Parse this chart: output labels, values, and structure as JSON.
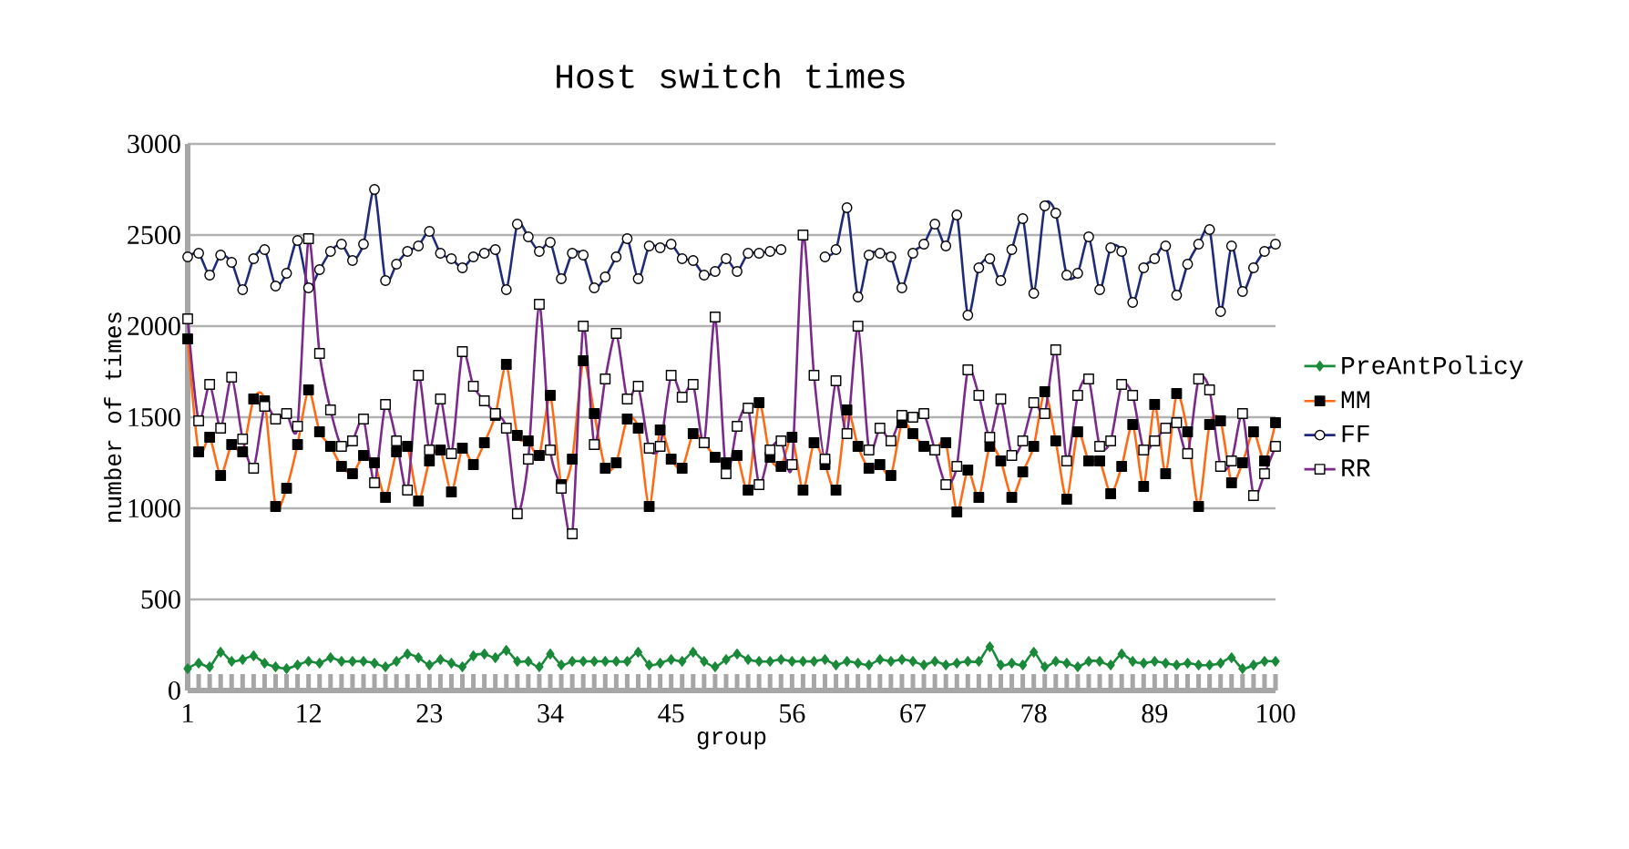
{
  "chart_data": {
    "type": "line",
    "title": "Host switch times",
    "xlabel": "group",
    "ylabel": "number of times",
    "x": [
      1,
      2,
      3,
      4,
      5,
      6,
      7,
      8,
      9,
      10,
      11,
      12,
      13,
      14,
      15,
      16,
      17,
      18,
      19,
      20,
      21,
      22,
      23,
      24,
      25,
      26,
      27,
      28,
      29,
      30,
      31,
      32,
      33,
      34,
      35,
      36,
      37,
      38,
      39,
      40,
      41,
      42,
      43,
      44,
      45,
      46,
      47,
      48,
      49,
      50,
      51,
      52,
      53,
      54,
      55,
      56,
      57,
      58,
      59,
      60,
      61,
      62,
      63,
      64,
      65,
      66,
      67,
      68,
      69,
      70,
      71,
      72,
      73,
      74,
      75,
      76,
      77,
      78,
      79,
      80,
      81,
      82,
      83,
      84,
      85,
      86,
      87,
      88,
      89,
      90,
      91,
      92,
      93,
      94,
      95,
      96,
      97,
      98,
      99,
      100
    ],
    "xlim": [
      1,
      100
    ],
    "xticks": [
      1,
      12,
      23,
      34,
      45,
      56,
      67,
      78,
      89,
      100
    ],
    "ylim": [
      0,
      3000
    ],
    "yticks": [
      0,
      500,
      1000,
      1500,
      2000,
      2500,
      3000
    ],
    "grid": "y",
    "legend": "right",
    "series": [
      {
        "name": "PreAntPolicy",
        "color": "#1a8a3a",
        "marker": "diamond",
        "values": [
          120,
          150,
          130,
          210,
          160,
          170,
          190,
          150,
          130,
          120,
          140,
          160,
          150,
          180,
          160,
          160,
          160,
          150,
          130,
          160,
          200,
          180,
          140,
          170,
          150,
          130,
          190,
          200,
          180,
          220,
          160,
          160,
          130,
          200,
          140,
          160,
          160,
          160,
          160,
          160,
          160,
          210,
          140,
          150,
          170,
          160,
          210,
          160,
          130,
          170,
          200,
          170,
          160,
          160,
          170,
          160,
          160,
          160,
          170,
          140,
          160,
          150,
          140,
          170,
          160,
          170,
          160,
          140,
          160,
          140,
          150,
          160,
          160,
          240,
          140,
          150,
          140,
          210,
          130,
          160,
          150,
          130,
          160,
          160,
          140,
          200,
          160,
          150,
          160,
          150,
          140,
          150,
          140,
          140,
          150,
          180,
          120,
          140,
          160,
          160
        ]
      },
      {
        "name": "MM",
        "color": "#ff6a13",
        "marker": "square",
        "values": [
          1930,
          1310,
          1390,
          1180,
          1350,
          1310,
          1600,
          1590,
          1010,
          1110,
          1350,
          1650,
          1420,
          1340,
          1230,
          1190,
          1290,
          1250,
          1060,
          1310,
          1340,
          1040,
          1260,
          1320,
          1090,
          1330,
          1240,
          1360,
          1510,
          1790,
          1400,
          1370,
          1290,
          1620,
          1130,
          1270,
          1810,
          1520,
          1220,
          1250,
          1490,
          1440,
          1010,
          1430,
          1270,
          1220,
          1410,
          1360,
          1280,
          1250,
          1290,
          1100,
          1580,
          1280,
          1230,
          1390,
          1100,
          1360,
          1240,
          1100,
          1540,
          1340,
          1220,
          1240,
          1180,
          1470,
          1410,
          1340,
          1320,
          1360,
          980,
          1210,
          1060,
          1340,
          1260,
          1060,
          1200,
          1340,
          1640,
          1370,
          1050,
          1420,
          1260,
          1260,
          1080,
          1230,
          1460,
          1120,
          1570,
          1190,
          1630,
          1420,
          1010,
          1460,
          1480,
          1140,
          1250,
          1420,
          1260,
          1470
        ]
      },
      {
        "name": "FF",
        "color": "#1f2a7a",
        "marker": "circle",
        "values": [
          2380,
          2400,
          2280,
          2390,
          2350,
          2200,
          2370,
          2420,
          2220,
          2290,
          2470,
          2210,
          2310,
          2410,
          2450,
          2360,
          2450,
          2750,
          2250,
          2340,
          2410,
          2440,
          2520,
          2400,
          2370,
          2320,
          2380,
          2400,
          2420,
          2200,
          2560,
          2490,
          2410,
          2460,
          2260,
          2400,
          2390,
          2210,
          2270,
          2380,
          2480,
          2260,
          2440,
          2430,
          2450,
          2370,
          2360,
          2280,
          2300,
          2370,
          2300,
          2400,
          2400,
          2410,
          2420,
          null,
          null,
          null,
          2380,
          2420,
          2650,
          2160,
          2390,
          2400,
          2380,
          2210,
          2400,
          2450,
          2560,
          2440,
          2610,
          2060,
          2320,
          2370,
          2250,
          2420,
          2590,
          2180,
          2660,
          2620,
          2280,
          2290,
          2490,
          2200,
          2430,
          2410,
          2130,
          2320,
          2370,
          2440,
          2170,
          2340,
          2450,
          2530,
          2080,
          2440,
          2190,
          2320,
          2410,
          2450
        ]
      },
      {
        "name": "RR",
        "color": "#7b2a8c",
        "marker": "square",
        "values": [
          2040,
          1480,
          1680,
          1440,
          1720,
          1380,
          1220,
          1560,
          1490,
          1520,
          1450,
          2480,
          1850,
          1540,
          1340,
          1370,
          1490,
          1140,
          1570,
          1370,
          1100,
          1730,
          1320,
          1600,
          1300,
          1860,
          1670,
          1590,
          1520,
          1440,
          970,
          1270,
          2120,
          1320,
          1110,
          860,
          2000,
          1350,
          1710,
          1960,
          1600,
          1670,
          1330,
          1340,
          1730,
          1610,
          1680,
          1360,
          2050,
          1190,
          1450,
          1550,
          1130,
          1320,
          1370,
          1240,
          2500,
          1730,
          1270,
          1700,
          1410,
          2000,
          1320,
          1440,
          1370,
          1510,
          1500,
          1520,
          1320,
          1130,
          1230,
          1760,
          1620,
          1390,
          1600,
          1290,
          1370,
          1580,
          1520,
          1870,
          1260,
          1620,
          1710,
          1340,
          1370,
          1680,
          1620,
          1320,
          1370,
          1440,
          1470,
          1300,
          1710,
          1650,
          1230,
          1260,
          1520,
          1070,
          1190,
          1340
        ]
      }
    ]
  }
}
